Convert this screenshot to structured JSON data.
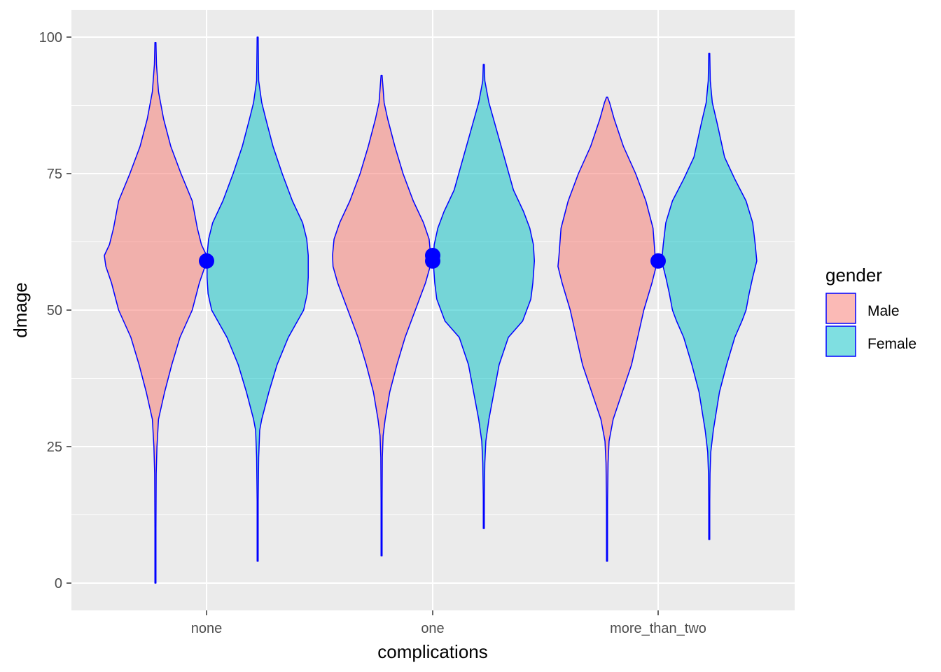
{
  "chart_data": {
    "type": "violin",
    "xlabel": "complications",
    "ylabel": "dmage",
    "categories": [
      "none",
      "one",
      "more_than_two"
    ],
    "yticks": [
      0,
      25,
      50,
      75,
      100
    ],
    "ylim": [
      -5,
      105
    ],
    "grid": true,
    "legend": {
      "title": "gender",
      "placement": "right",
      "entries": [
        {
          "label": "Male",
          "color": "#F8766D"
        },
        {
          "label": "Female",
          "color": "#00BFC4"
        }
      ]
    },
    "outline_color": "#0000FF",
    "point_color": "#0000FF",
    "series": [
      {
        "name": "Male",
        "color": "#F8766D",
        "violins": [
          {
            "category": "none",
            "min": 0,
            "max": 99,
            "profile": [
              [
                0,
                0.01
              ],
              [
                10,
                0.01
              ],
              [
                20,
                0.015
              ],
              [
                25,
                0.03
              ],
              [
                30,
                0.06
              ],
              [
                35,
                0.18
              ],
              [
                40,
                0.32
              ],
              [
                45,
                0.48
              ],
              [
                50,
                0.72
              ],
              [
                55,
                0.86
              ],
              [
                58,
                0.97
              ],
              [
                60,
                1.0
              ],
              [
                62,
                0.9
              ],
              [
                65,
                0.82
              ],
              [
                70,
                0.72
              ],
              [
                75,
                0.5
              ],
              [
                80,
                0.3
              ],
              [
                85,
                0.16
              ],
              [
                90,
                0.06
              ],
              [
                95,
                0.02
              ],
              [
                99,
                0.01
              ]
            ]
          },
          {
            "category": "one",
            "min": 5,
            "max": 93,
            "profile": [
              [
                5,
                0.01
              ],
              [
                15,
                0.01
              ],
              [
                23,
                0.015
              ],
              [
                27,
                0.03
              ],
              [
                30,
                0.07
              ],
              [
                35,
                0.16
              ],
              [
                40,
                0.3
              ],
              [
                45,
                0.46
              ],
              [
                50,
                0.66
              ],
              [
                55,
                0.86
              ],
              [
                58,
                0.95
              ],
              [
                60,
                0.96
              ],
              [
                63,
                0.93
              ],
              [
                66,
                0.82
              ],
              [
                70,
                0.62
              ],
              [
                75,
                0.42
              ],
              [
                80,
                0.26
              ],
              [
                85,
                0.12
              ],
              [
                88,
                0.05
              ],
              [
                93,
                0.01
              ]
            ]
          },
          {
            "category": "more_than_two",
            "min": 4,
            "max": 89,
            "profile": [
              [
                4,
                0.01
              ],
              [
                15,
                0.01
              ],
              [
                22,
                0.02
              ],
              [
                26,
                0.04
              ],
              [
                30,
                0.12
              ],
              [
                35,
                0.3
              ],
              [
                40,
                0.48
              ],
              [
                45,
                0.6
              ],
              [
                50,
                0.72
              ],
              [
                55,
                0.88
              ],
              [
                58,
                0.96
              ],
              [
                60,
                0.94
              ],
              [
                65,
                0.9
              ],
              [
                70,
                0.76
              ],
              [
                75,
                0.56
              ],
              [
                80,
                0.32
              ],
              [
                85,
                0.14
              ],
              [
                88,
                0.05
              ],
              [
                89,
                0.01
              ]
            ]
          }
        ]
      },
      {
        "name": "Female",
        "color": "#00BFC4",
        "violins": [
          {
            "category": "none",
            "min": 4,
            "max": 100,
            "profile": [
              [
                4,
                0.01
              ],
              [
                15,
                0.01
              ],
              [
                23,
                0.02
              ],
              [
                28,
                0.04
              ],
              [
                30,
                0.08
              ],
              [
                35,
                0.22
              ],
              [
                40,
                0.38
              ],
              [
                45,
                0.6
              ],
              [
                50,
                0.9
              ],
              [
                53,
                0.97
              ],
              [
                56,
                0.99
              ],
              [
                60,
                0.99
              ],
              [
                63,
                0.96
              ],
              [
                66,
                0.88
              ],
              [
                70,
                0.68
              ],
              [
                75,
                0.48
              ],
              [
                80,
                0.3
              ],
              [
                85,
                0.16
              ],
              [
                88,
                0.08
              ],
              [
                92,
                0.02
              ],
              [
                100,
                0.01
              ]
            ]
          },
          {
            "category": "one",
            "min": 10,
            "max": 95,
            "profile": [
              [
                10,
                0.01
              ],
              [
                16,
                0.01
              ],
              [
                22,
                0.02
              ],
              [
                26,
                0.04
              ],
              [
                30,
                0.1
              ],
              [
                35,
                0.2
              ],
              [
                40,
                0.3
              ],
              [
                45,
                0.48
              ],
              [
                48,
                0.76
              ],
              [
                52,
                0.92
              ],
              [
                55,
                0.96
              ],
              [
                59,
                0.99
              ],
              [
                62,
                0.97
              ],
              [
                65,
                0.9
              ],
              [
                68,
                0.78
              ],
              [
                72,
                0.58
              ],
              [
                78,
                0.4
              ],
              [
                84,
                0.22
              ],
              [
                88,
                0.1
              ],
              [
                92,
                0.02
              ],
              [
                95,
                0.01
              ]
            ]
          },
          {
            "category": "more_than_two",
            "min": 8,
            "max": 97,
            "profile": [
              [
                8,
                0.01
              ],
              [
                15,
                0.01
              ],
              [
                20,
                0.015
              ],
              [
                24,
                0.03
              ],
              [
                28,
                0.08
              ],
              [
                35,
                0.2
              ],
              [
                40,
                0.34
              ],
              [
                45,
                0.5
              ],
              [
                48,
                0.64
              ],
              [
                50,
                0.72
              ],
              [
                53,
                0.78
              ],
              [
                56,
                0.85
              ],
              [
                59,
                0.93
              ],
              [
                62,
                0.9
              ],
              [
                66,
                0.85
              ],
              [
                70,
                0.72
              ],
              [
                74,
                0.5
              ],
              [
                78,
                0.3
              ],
              [
                84,
                0.16
              ],
              [
                88,
                0.06
              ],
              [
                92,
                0.02
              ],
              [
                97,
                0.01
              ]
            ]
          }
        ]
      }
    ],
    "points": [
      {
        "category": "none",
        "values": [
          59
        ]
      },
      {
        "category": "one",
        "values": [
          59,
          60
        ]
      },
      {
        "category": "more_than_two",
        "values": [
          59
        ]
      }
    ]
  }
}
